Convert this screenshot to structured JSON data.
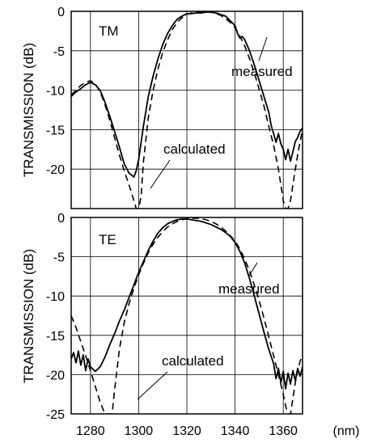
{
  "chart_data": [
    {
      "type": "line",
      "panel_label": "TM",
      "ylabel": "TRANSMISSION (dB)",
      "xlabel": "",
      "xlim": [
        1272,
        1368
      ],
      "ylim": [
        -25,
        0
      ],
      "yticks": [
        0,
        -5,
        -10,
        -15,
        -20
      ],
      "ytick_labels": [
        "0",
        "-5",
        "-10",
        "-15",
        "-20"
      ],
      "xticks": [
        1280,
        1300,
        1320,
        1340,
        1360
      ],
      "grid": true,
      "annotations": [
        {
          "text": "measured",
          "target_series": "measured"
        },
        {
          "text": "calculated",
          "target_series": "calculated"
        }
      ],
      "series": [
        {
          "name": "measured",
          "style": "solid",
          "x": [
            1272,
            1274,
            1276,
            1278,
            1280,
            1282,
            1284,
            1286,
            1288,
            1290,
            1292,
            1294,
            1296,
            1298,
            1299,
            1300,
            1302,
            1304,
            1306,
            1308,
            1310,
            1312,
            1314,
            1316,
            1318,
            1320,
            1322,
            1324,
            1326,
            1328,
            1330,
            1332,
            1334,
            1336,
            1338,
            1340,
            1341,
            1342,
            1343,
            1344,
            1346,
            1348,
            1350,
            1352,
            1354,
            1355,
            1356,
            1357,
            1358,
            1359,
            1360,
            1361,
            1362,
            1363,
            1364,
            1365,
            1366,
            1367,
            1368
          ],
          "y": [
            -10.8,
            -10.2,
            -9.8,
            -9.3,
            -9.0,
            -9.3,
            -10.0,
            -11.5,
            -13.3,
            -15.2,
            -17.2,
            -19.3,
            -20.5,
            -21.0,
            -20.2,
            -18.8,
            -14.5,
            -10.8,
            -8.2,
            -6.0,
            -4.2,
            -2.8,
            -1.8,
            -1.0,
            -0.6,
            -0.3,
            -0.3,
            -0.2,
            -0.2,
            -0.1,
            -0.1,
            -0.2,
            -0.4,
            -0.6,
            -1.2,
            -1.8,
            -2.8,
            -3.4,
            -3.2,
            -3.6,
            -5.0,
            -6.8,
            -8.8,
            -10.8,
            -12.8,
            -14.5,
            -15.5,
            -16.6,
            -15.5,
            -16.8,
            -17.5,
            -18.8,
            -17.5,
            -19.0,
            -17.8,
            -16.5,
            -16.0,
            -15.2,
            -14.8
          ]
        },
        {
          "name": "calculated",
          "style": "dashed",
          "x": [
            1272,
            1274,
            1276,
            1278,
            1280,
            1282,
            1284,
            1286,
            1288,
            1290,
            1292,
            1294,
            1296,
            1298,
            1299,
            1300,
            1301,
            1302,
            1304,
            1306,
            1308,
            1310,
            1312,
            1314,
            1316,
            1318,
            1320,
            1322,
            1324,
            1326,
            1328,
            1330,
            1332,
            1334,
            1336,
            1338,
            1340,
            1342,
            1344,
            1346,
            1348,
            1350,
            1352,
            1354,
            1356,
            1358,
            1359,
            1360,
            1361,
            1362,
            1363,
            1364,
            1365,
            1366,
            1367,
            1368
          ],
          "y": [
            -10.6,
            -10.0,
            -9.4,
            -9.0,
            -8.8,
            -9.2,
            -10.2,
            -11.8,
            -13.8,
            -16.0,
            -18.2,
            -20.2,
            -22.0,
            -24.0,
            -25.0,
            -25.0,
            -23.5,
            -19.0,
            -13.5,
            -10.0,
            -7.3,
            -5.2,
            -3.6,
            -2.3,
            -1.4,
            -0.8,
            -0.4,
            -0.2,
            -0.1,
            -0.05,
            -0.05,
            -0.1,
            -0.3,
            -0.5,
            -0.9,
            -1.4,
            -2.1,
            -3.1,
            -4.4,
            -6.0,
            -7.8,
            -9.9,
            -12.0,
            -14.6,
            -17.0,
            -20.0,
            -22.0,
            -24.0,
            -25.0,
            -25.0,
            -24.0,
            -22.0,
            -20.0,
            -18.2,
            -16.5,
            -15.0
          ]
        }
      ]
    },
    {
      "type": "line",
      "panel_label": "TE",
      "ylabel": "TRANSMISSION (dB)",
      "xlabel": "(nm)",
      "xlim": [
        1272,
        1368
      ],
      "ylim": [
        -25,
        0
      ],
      "yticks": [
        0,
        -5,
        -10,
        -15,
        -20,
        -25
      ],
      "ytick_labels": [
        "0",
        "-5",
        "-10",
        "-15",
        "-20",
        "-25"
      ],
      "xticks": [
        1280,
        1300,
        1320,
        1340,
        1360
      ],
      "xtick_labels": [
        "1280",
        "1300",
        "1320",
        "1340",
        "1360"
      ],
      "grid": true,
      "annotations": [
        {
          "text": "measured",
          "target_series": "measured"
        },
        {
          "text": "calculated",
          "target_series": "calculated"
        }
      ],
      "series": [
        {
          "name": "measured",
          "style": "solid",
          "x": [
            1272,
            1273,
            1274,
            1275,
            1276,
            1277,
            1278,
            1279,
            1280,
            1282,
            1284,
            1286,
            1288,
            1290,
            1292,
            1294,
            1296,
            1298,
            1300,
            1302,
            1304,
            1306,
            1308,
            1310,
            1312,
            1314,
            1316,
            1318,
            1320,
            1322,
            1324,
            1326,
            1328,
            1330,
            1332,
            1334,
            1336,
            1338,
            1340,
            1342,
            1344,
            1346,
            1348,
            1350,
            1352,
            1354,
            1356,
            1357,
            1358,
            1359,
            1360,
            1361,
            1362,
            1363,
            1364,
            1365,
            1366,
            1367,
            1368
          ],
          "y": [
            -18.0,
            -17.2,
            -18.5,
            -17.0,
            -18.8,
            -17.5,
            -19.5,
            -18.0,
            -19.0,
            -19.6,
            -19.0,
            -17.8,
            -16.2,
            -14.8,
            -13.2,
            -11.8,
            -10.2,
            -8.6,
            -7.0,
            -5.6,
            -4.2,
            -3.0,
            -2.0,
            -1.3,
            -0.8,
            -0.5,
            -0.3,
            -0.2,
            -0.2,
            -0.3,
            -0.4,
            -0.5,
            -0.7,
            -0.9,
            -1.2,
            -1.5,
            -1.9,
            -2.4,
            -3.2,
            -4.3,
            -5.8,
            -7.8,
            -10.0,
            -12.3,
            -14.6,
            -16.8,
            -18.6,
            -20.5,
            -19.2,
            -21.0,
            -19.6,
            -21.8,
            -19.8,
            -21.2,
            -19.5,
            -20.8,
            -19.2,
            -20.2,
            -19.0
          ]
        },
        {
          "name": "calculated",
          "style": "dashed",
          "x": [
            1272,
            1274,
            1276,
            1278,
            1280,
            1282,
            1284,
            1286,
            1288,
            1289,
            1290,
            1292,
            1294,
            1296,
            1298,
            1300,
            1302,
            1304,
            1306,
            1308,
            1310,
            1312,
            1314,
            1316,
            1318,
            1320,
            1322,
            1324,
            1326,
            1328,
            1330,
            1332,
            1334,
            1336,
            1338,
            1340,
            1342,
            1344,
            1346,
            1348,
            1350,
            1352,
            1354,
            1356,
            1358,
            1360,
            1361,
            1362,
            1363,
            1364,
            1365,
            1366,
            1367,
            1368
          ],
          "y": [
            -12.5,
            -14.0,
            -15.8,
            -17.6,
            -19.5,
            -21.5,
            -23.5,
            -25.0,
            -25.0,
            -25.0,
            -22.0,
            -16.8,
            -13.4,
            -11.0,
            -9.0,
            -7.3,
            -5.8,
            -4.5,
            -3.4,
            -2.5,
            -1.8,
            -1.2,
            -0.8,
            -0.5,
            -0.3,
            -0.15,
            -0.1,
            -0.1,
            -0.15,
            -0.3,
            -0.5,
            -0.8,
            -1.2,
            -1.7,
            -2.3,
            -3.0,
            -4.0,
            -5.3,
            -6.8,
            -8.6,
            -10.6,
            -12.8,
            -15.2,
            -17.6,
            -20.0,
            -22.5,
            -24.0,
            -25.0,
            -25.0,
            -23.0,
            -21.0,
            -19.5,
            -18.3,
            -17.5
          ]
        }
      ]
    }
  ]
}
